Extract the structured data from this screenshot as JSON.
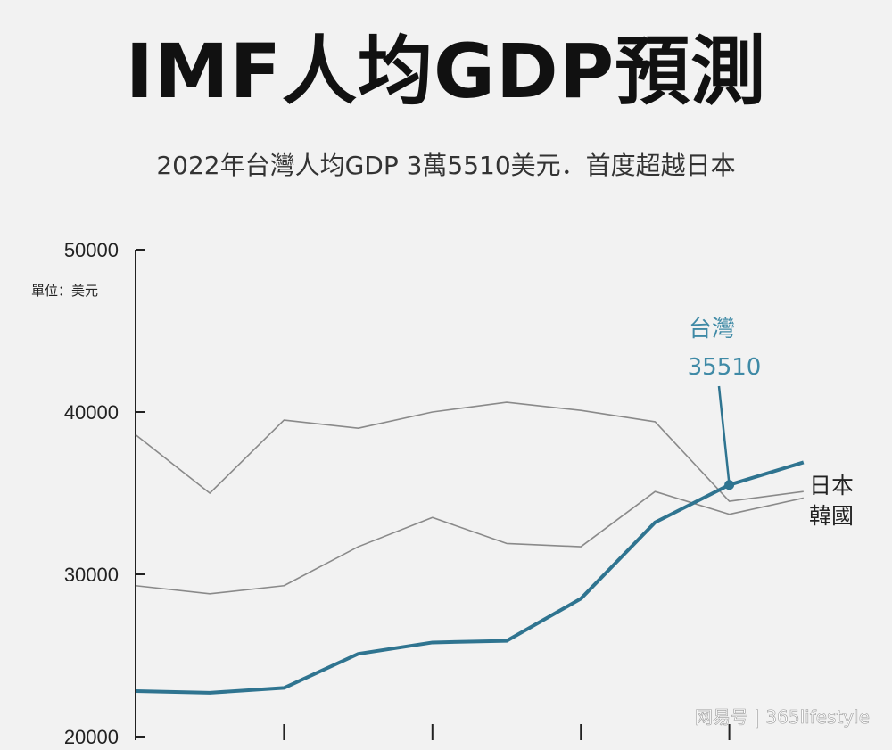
{
  "title": "IMF人均GDP預測",
  "subtitle": "2022年台灣人均GDP 3萬5510美元．首度超越日本",
  "watermark": "网易号 | 365lifestyle",
  "colors": {
    "taiwan": "#2f7490",
    "taiwan_label": "#3f8aa6",
    "others": "#8a8a8a",
    "axis": "#222222",
    "background": "#f2f2f2"
  },
  "chart_data": {
    "type": "line",
    "unit_label": "單位：美元",
    "ylim": [
      20000,
      50000
    ],
    "yticks": [
      20000,
      30000,
      40000,
      50000
    ],
    "ytick_labels": [
      "20000",
      "30000",
      "40000",
      "50000"
    ],
    "x": [
      0,
      1,
      2,
      3,
      4,
      5,
      6,
      7,
      8,
      9
    ],
    "grid": false,
    "series": [
      {
        "name": "日本",
        "values": [
          38600,
          35000,
          39500,
          39000,
          40000,
          40600,
          40100,
          39400,
          34500,
          35100
        ]
      },
      {
        "name": "韓國",
        "values": [
          29300,
          28800,
          29300,
          31700,
          33500,
          31900,
          31700,
          35100,
          33700,
          34700
        ]
      },
      {
        "name": "台灣",
        "values": [
          22800,
          22700,
          23000,
          25100,
          25800,
          25900,
          28500,
          33200,
          35510,
          36900
        ]
      }
    ],
    "annotation": {
      "series": "台灣",
      "index": 8,
      "label": "台灣",
      "value_label": "35510"
    }
  }
}
